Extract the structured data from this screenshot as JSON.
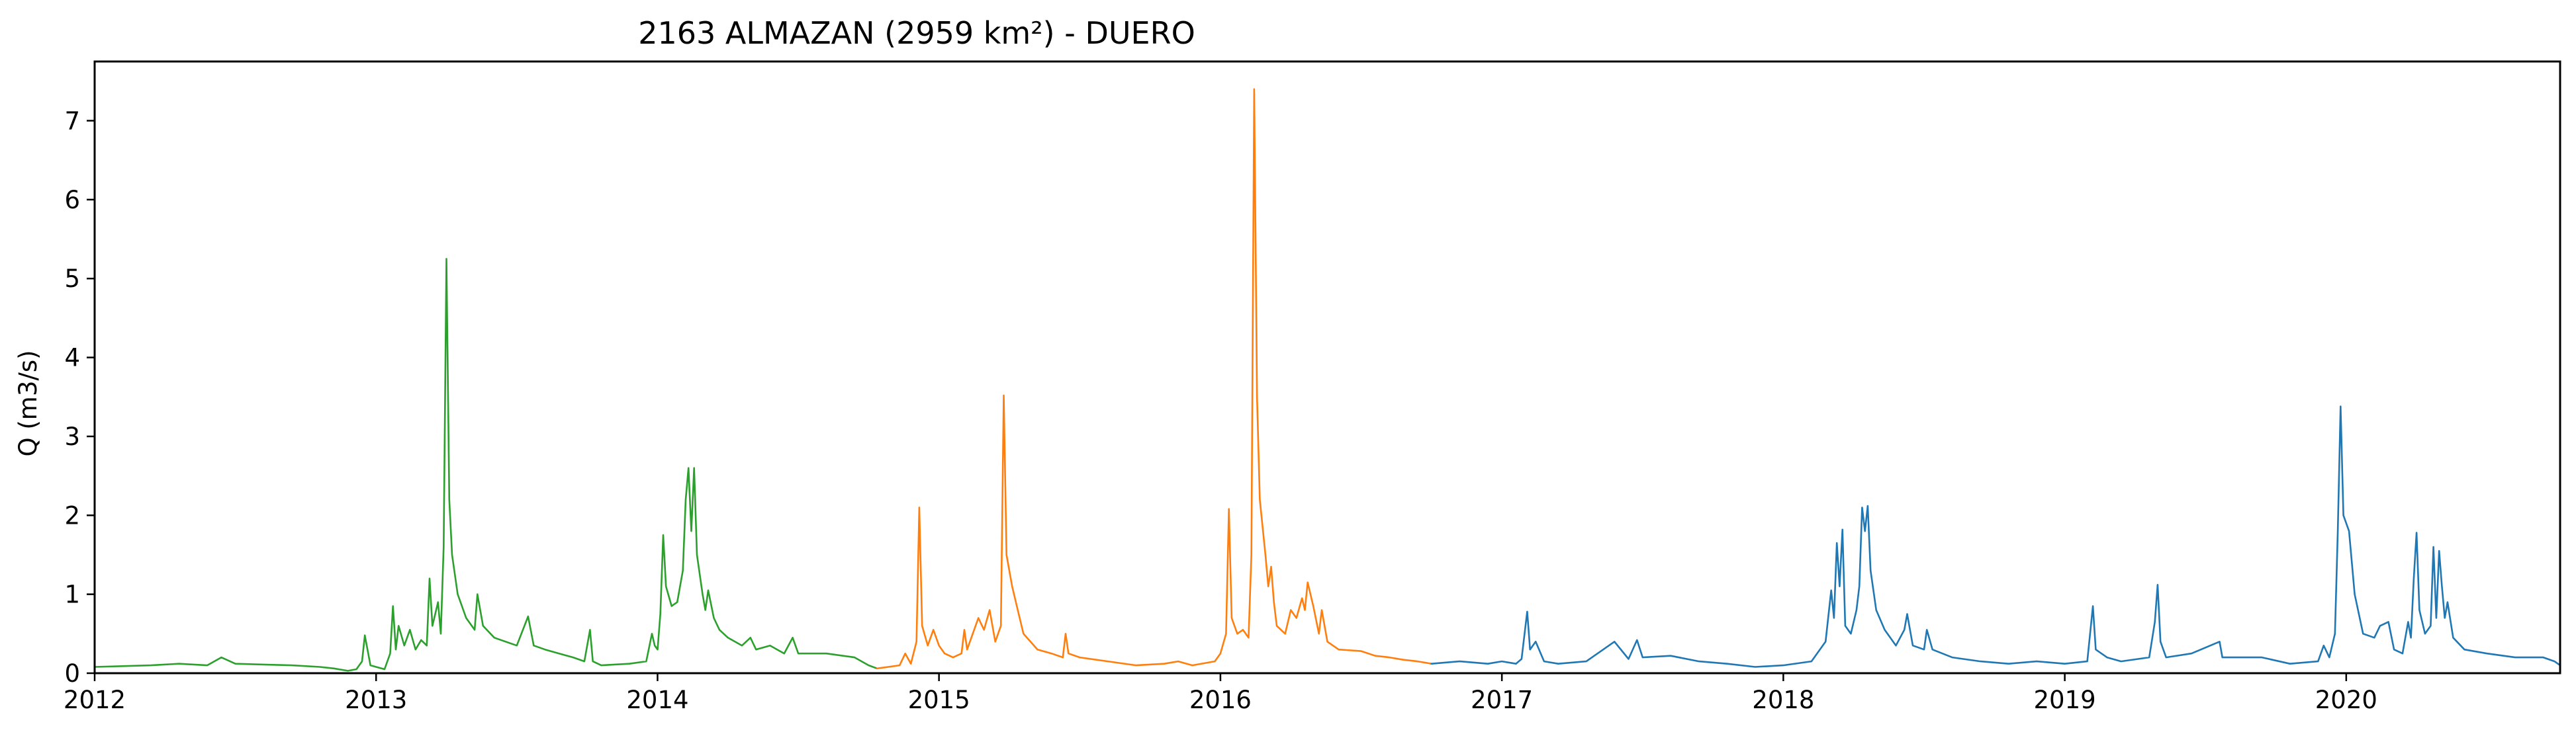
{
  "chart_data": {
    "type": "line",
    "title": "2163 ALMAZAN (2959 km²) - DUERO",
    "xlabel": "",
    "ylabel": "Q (m3/s)",
    "xlim": [
      2012.0,
      2020.76
    ],
    "ylim": [
      0,
      7.75
    ],
    "grid": false,
    "x_ticks": [
      {
        "value": 2012,
        "label": "2012"
      },
      {
        "value": 2013,
        "label": "2013"
      },
      {
        "value": 2014,
        "label": "2014"
      },
      {
        "value": 2015,
        "label": "2015"
      },
      {
        "value": 2016,
        "label": "2016"
      },
      {
        "value": 2017,
        "label": "2017"
      },
      {
        "value": 2018,
        "label": "2018"
      },
      {
        "value": 2019,
        "label": "2019"
      },
      {
        "value": 2020,
        "label": "2020"
      }
    ],
    "y_ticks": [
      {
        "value": 0,
        "label": "0"
      },
      {
        "value": 1,
        "label": "1"
      },
      {
        "value": 2,
        "label": "2"
      },
      {
        "value": 3,
        "label": "3"
      },
      {
        "value": 4,
        "label": "4"
      },
      {
        "value": 5,
        "label": "5"
      },
      {
        "value": 6,
        "label": "6"
      },
      {
        "value": 7,
        "label": "7"
      }
    ],
    "series": [
      {
        "color": "#2ca02c",
        "points": [
          [
            2012.0,
            0.08
          ],
          [
            2012.1,
            0.09
          ],
          [
            2012.2,
            0.1
          ],
          [
            2012.3,
            0.12
          ],
          [
            2012.4,
            0.1
          ],
          [
            2012.45,
            0.2
          ],
          [
            2012.5,
            0.12
          ],
          [
            2012.6,
            0.11
          ],
          [
            2012.7,
            0.1
          ],
          [
            2012.8,
            0.08
          ],
          [
            2012.85,
            0.06
          ],
          [
            2012.9,
            0.03
          ],
          [
            2012.93,
            0.05
          ],
          [
            2012.95,
            0.15
          ],
          [
            2012.96,
            0.48
          ],
          [
            2012.98,
            0.1
          ],
          [
            2013.0,
            0.08
          ],
          [
            2013.03,
            0.05
          ],
          [
            2013.05,
            0.25
          ],
          [
            2013.06,
            0.85
          ],
          [
            2013.07,
            0.3
          ],
          [
            2013.08,
            0.6
          ],
          [
            2013.1,
            0.35
          ],
          [
            2013.12,
            0.55
          ],
          [
            2013.14,
            0.3
          ],
          [
            2013.16,
            0.42
          ],
          [
            2013.18,
            0.35
          ],
          [
            2013.19,
            1.2
          ],
          [
            2013.2,
            0.6
          ],
          [
            2013.22,
            0.9
          ],
          [
            2013.23,
            0.5
          ],
          [
            2013.24,
            1.6
          ],
          [
            2013.25,
            5.25
          ],
          [
            2013.26,
            2.2
          ],
          [
            2013.27,
            1.5
          ],
          [
            2013.29,
            1.0
          ],
          [
            2013.32,
            0.7
          ],
          [
            2013.35,
            0.55
          ],
          [
            2013.36,
            1.0
          ],
          [
            2013.38,
            0.6
          ],
          [
            2013.42,
            0.45
          ],
          [
            2013.5,
            0.35
          ],
          [
            2013.54,
            0.72
          ],
          [
            2013.56,
            0.35
          ],
          [
            2013.6,
            0.3
          ],
          [
            2013.65,
            0.25
          ],
          [
            2013.7,
            0.2
          ],
          [
            2013.74,
            0.15
          ],
          [
            2013.76,
            0.55
          ],
          [
            2013.77,
            0.15
          ],
          [
            2013.8,
            0.1
          ],
          [
            2013.9,
            0.12
          ],
          [
            2013.96,
            0.15
          ],
          [
            2013.98,
            0.5
          ],
          [
            2013.99,
            0.35
          ],
          [
            2014.0,
            0.3
          ],
          [
            2014.01,
            0.75
          ],
          [
            2014.02,
            1.75
          ],
          [
            2014.03,
            1.1
          ],
          [
            2014.05,
            0.85
          ],
          [
            2014.07,
            0.9
          ],
          [
            2014.09,
            1.3
          ],
          [
            2014.1,
            2.2
          ],
          [
            2014.11,
            2.6
          ],
          [
            2014.12,
            1.8
          ],
          [
            2014.13,
            2.6
          ],
          [
            2014.14,
            1.5
          ],
          [
            2014.16,
            1.0
          ],
          [
            2014.17,
            0.8
          ],
          [
            2014.18,
            1.05
          ],
          [
            2014.2,
            0.7
          ],
          [
            2014.22,
            0.55
          ],
          [
            2014.25,
            0.45
          ],
          [
            2014.3,
            0.35
          ],
          [
            2014.33,
            0.45
          ],
          [
            2014.35,
            0.3
          ],
          [
            2014.4,
            0.35
          ],
          [
            2014.45,
            0.25
          ],
          [
            2014.48,
            0.45
          ],
          [
            2014.5,
            0.25
          ],
          [
            2014.6,
            0.25
          ],
          [
            2014.7,
            0.2
          ],
          [
            2014.75,
            0.1
          ],
          [
            2014.78,
            0.06
          ]
        ]
      },
      {
        "color": "#ff7f0e",
        "points": [
          [
            2014.78,
            0.06
          ],
          [
            2014.82,
            0.08
          ],
          [
            2014.86,
            0.1
          ],
          [
            2014.88,
            0.25
          ],
          [
            2014.9,
            0.12
          ],
          [
            2014.92,
            0.4
          ],
          [
            2014.93,
            2.1
          ],
          [
            2014.94,
            0.6
          ],
          [
            2014.96,
            0.35
          ],
          [
            2014.98,
            0.55
          ],
          [
            2015.0,
            0.35
          ],
          [
            2015.02,
            0.25
          ],
          [
            2015.05,
            0.2
          ],
          [
            2015.08,
            0.25
          ],
          [
            2015.09,
            0.55
          ],
          [
            2015.1,
            0.3
          ],
          [
            2015.12,
            0.5
          ],
          [
            2015.14,
            0.7
          ],
          [
            2015.16,
            0.55
          ],
          [
            2015.18,
            0.8
          ],
          [
            2015.2,
            0.4
          ],
          [
            2015.22,
            0.6
          ],
          [
            2015.23,
            3.52
          ],
          [
            2015.24,
            1.5
          ],
          [
            2015.26,
            1.1
          ],
          [
            2015.28,
            0.8
          ],
          [
            2015.3,
            0.5
          ],
          [
            2015.35,
            0.3
          ],
          [
            2015.4,
            0.25
          ],
          [
            2015.44,
            0.2
          ],
          [
            2015.45,
            0.5
          ],
          [
            2015.46,
            0.25
          ],
          [
            2015.5,
            0.2
          ],
          [
            2015.6,
            0.15
          ],
          [
            2015.7,
            0.1
          ],
          [
            2015.8,
            0.12
          ],
          [
            2015.85,
            0.15
          ],
          [
            2015.9,
            0.1
          ],
          [
            2015.98,
            0.15
          ],
          [
            2016.0,
            0.25
          ],
          [
            2016.02,
            0.5
          ],
          [
            2016.03,
            2.08
          ],
          [
            2016.04,
            0.7
          ],
          [
            2016.06,
            0.5
          ],
          [
            2016.08,
            0.55
          ],
          [
            2016.1,
            0.45
          ],
          [
            2016.11,
            1.5
          ],
          [
            2016.12,
            7.4
          ],
          [
            2016.13,
            3.5
          ],
          [
            2016.14,
            2.2
          ],
          [
            2016.16,
            1.5
          ],
          [
            2016.17,
            1.1
          ],
          [
            2016.18,
            1.35
          ],
          [
            2016.19,
            0.9
          ],
          [
            2016.2,
            0.6
          ],
          [
            2016.23,
            0.5
          ],
          [
            2016.25,
            0.8
          ],
          [
            2016.27,
            0.7
          ],
          [
            2016.29,
            0.95
          ],
          [
            2016.3,
            0.8
          ],
          [
            2016.31,
            1.15
          ],
          [
            2016.33,
            0.85
          ],
          [
            2016.35,
            0.5
          ],
          [
            2016.36,
            0.8
          ],
          [
            2016.38,
            0.4
          ],
          [
            2016.42,
            0.3
          ],
          [
            2016.5,
            0.28
          ],
          [
            2016.55,
            0.22
          ],
          [
            2016.6,
            0.2
          ],
          [
            2016.65,
            0.17
          ],
          [
            2016.7,
            0.15
          ],
          [
            2016.75,
            0.12
          ]
        ]
      },
      {
        "color": "#1f77b4",
        "points": [
          [
            2016.75,
            0.12
          ],
          [
            2016.85,
            0.15
          ],
          [
            2016.95,
            0.12
          ],
          [
            2017.0,
            0.15
          ],
          [
            2017.05,
            0.12
          ],
          [
            2017.07,
            0.18
          ],
          [
            2017.09,
            0.78
          ],
          [
            2017.1,
            0.3
          ],
          [
            2017.12,
            0.4
          ],
          [
            2017.15,
            0.15
          ],
          [
            2017.2,
            0.12
          ],
          [
            2017.3,
            0.15
          ],
          [
            2017.4,
            0.4
          ],
          [
            2017.45,
            0.18
          ],
          [
            2017.48,
            0.42
          ],
          [
            2017.5,
            0.2
          ],
          [
            2017.6,
            0.22
          ],
          [
            2017.7,
            0.15
          ],
          [
            2017.8,
            0.12
          ],
          [
            2017.9,
            0.08
          ],
          [
            2018.0,
            0.1
          ],
          [
            2018.1,
            0.15
          ],
          [
            2018.15,
            0.4
          ],
          [
            2018.17,
            1.05
          ],
          [
            2018.18,
            0.7
          ],
          [
            2018.19,
            1.65
          ],
          [
            2018.2,
            1.1
          ],
          [
            2018.21,
            1.82
          ],
          [
            2018.22,
            0.6
          ],
          [
            2018.24,
            0.5
          ],
          [
            2018.26,
            0.8
          ],
          [
            2018.27,
            1.1
          ],
          [
            2018.28,
            2.1
          ],
          [
            2018.29,
            1.8
          ],
          [
            2018.3,
            2.12
          ],
          [
            2018.31,
            1.3
          ],
          [
            2018.33,
            0.8
          ],
          [
            2018.36,
            0.55
          ],
          [
            2018.4,
            0.35
          ],
          [
            2018.43,
            0.55
          ],
          [
            2018.44,
            0.75
          ],
          [
            2018.46,
            0.35
          ],
          [
            2018.5,
            0.3
          ],
          [
            2018.51,
            0.55
          ],
          [
            2018.53,
            0.3
          ],
          [
            2018.6,
            0.2
          ],
          [
            2018.7,
            0.15
          ],
          [
            2018.8,
            0.12
          ],
          [
            2018.9,
            0.15
          ],
          [
            2019.0,
            0.12
          ],
          [
            2019.08,
            0.15
          ],
          [
            2019.1,
            0.85
          ],
          [
            2019.11,
            0.3
          ],
          [
            2019.15,
            0.2
          ],
          [
            2019.2,
            0.15
          ],
          [
            2019.3,
            0.2
          ],
          [
            2019.32,
            0.65
          ],
          [
            2019.33,
            1.12
          ],
          [
            2019.34,
            0.4
          ],
          [
            2019.36,
            0.2
          ],
          [
            2019.45,
            0.25
          ],
          [
            2019.55,
            0.4
          ],
          [
            2019.56,
            0.2
          ],
          [
            2019.7,
            0.2
          ],
          [
            2019.8,
            0.12
          ],
          [
            2019.9,
            0.15
          ],
          [
            2019.92,
            0.35
          ],
          [
            2019.94,
            0.2
          ],
          [
            2019.96,
            0.5
          ],
          [
            2019.97,
            1.8
          ],
          [
            2019.98,
            3.38
          ],
          [
            2019.99,
            2.0
          ],
          [
            2020.01,
            1.8
          ],
          [
            2020.03,
            1.0
          ],
          [
            2020.06,
            0.5
          ],
          [
            2020.1,
            0.45
          ],
          [
            2020.12,
            0.6
          ],
          [
            2020.15,
            0.65
          ],
          [
            2020.17,
            0.3
          ],
          [
            2020.2,
            0.25
          ],
          [
            2020.22,
            0.65
          ],
          [
            2020.23,
            0.45
          ],
          [
            2020.24,
            1.2
          ],
          [
            2020.25,
            1.78
          ],
          [
            2020.26,
            0.8
          ],
          [
            2020.28,
            0.5
          ],
          [
            2020.3,
            0.6
          ],
          [
            2020.31,
            1.6
          ],
          [
            2020.32,
            0.7
          ],
          [
            2020.33,
            1.55
          ],
          [
            2020.34,
            1.1
          ],
          [
            2020.35,
            0.7
          ],
          [
            2020.36,
            0.9
          ],
          [
            2020.38,
            0.45
          ],
          [
            2020.42,
            0.3
          ],
          [
            2020.5,
            0.25
          ],
          [
            2020.6,
            0.2
          ],
          [
            2020.7,
            0.2
          ],
          [
            2020.74,
            0.15
          ],
          [
            2020.76,
            0.1
          ]
        ]
      }
    ]
  }
}
